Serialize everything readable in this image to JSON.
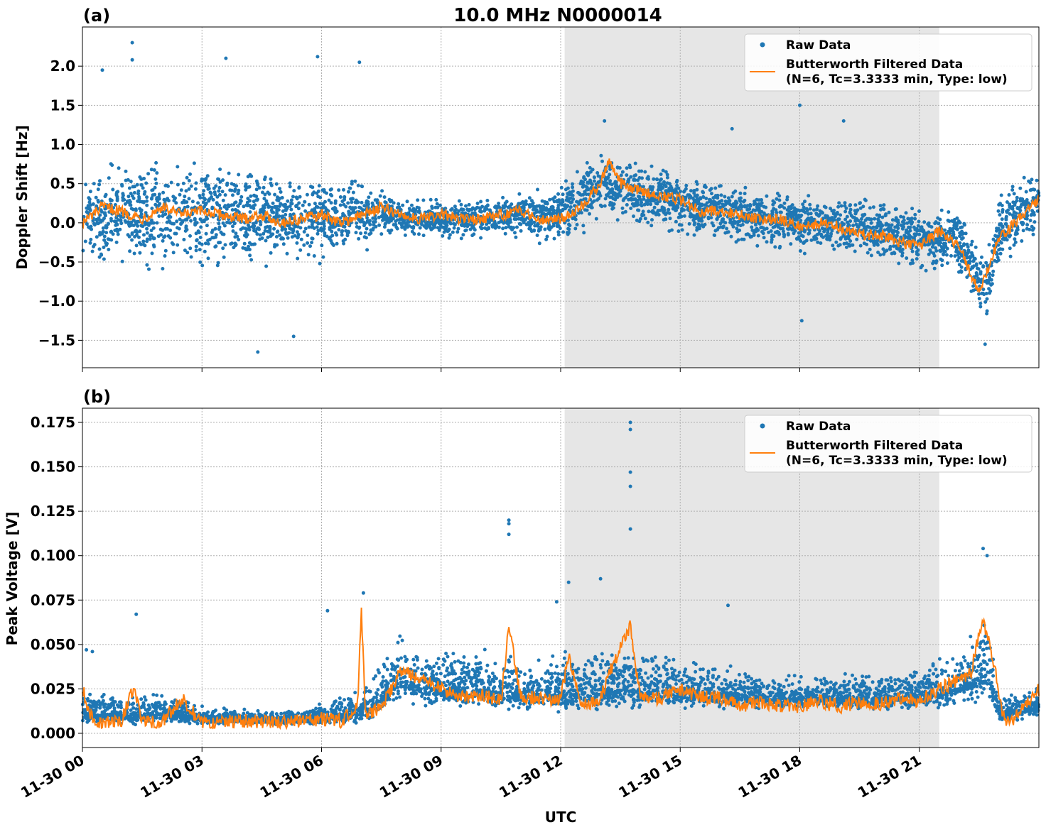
{
  "figure": {
    "xlabel": "UTC",
    "x_ticks": [
      "11-30 00",
      "11-30 03",
      "11-30 06",
      "11-30 09",
      "11-30 12",
      "11-30 15",
      "11-30 18",
      "11-30 21"
    ],
    "colors": {
      "raw": "#1f77b4",
      "filtered": "#ff7f0e",
      "shade": "#e6e6e6",
      "grid": "#b0b0b0"
    }
  },
  "chart_data": [
    {
      "type": "scatter",
      "panel_label": "(a)",
      "title": "10.0 MHz N0000014",
      "ylabel": "Doppler Shift [Hz]",
      "xlim": [
        "2023-11-30 00:00",
        "2023-12-01 00:00"
      ],
      "ylim": [
        -1.85,
        2.5
      ],
      "y_ticks": [
        "2.0",
        "1.5",
        "1.0",
        "0.5",
        "0.0",
        "−0.5",
        "−1.0",
        "−1.5"
      ],
      "y_tick_values": [
        2.0,
        1.5,
        1.0,
        0.5,
        0.0,
        -0.5,
        -1.0,
        -1.5
      ],
      "shaded_region": [
        "2023-11-30 12:06",
        "2023-11-30 21:30"
      ],
      "grid": true,
      "legend": {
        "location": "upper right",
        "raw": "Raw Data",
        "filtered_line1": "Butterworth Filtered Data",
        "filtered_line2": "(N=6, Tc=3.3333 min, Type: low)"
      },
      "filtered_series": {
        "name": "Butterworth Filtered Data (N=6, Tc=3.3333 min, Type: low)",
        "x_hours": [
          0,
          0.5,
          1,
          1.5,
          2,
          2.5,
          3,
          3.5,
          4,
          4.5,
          5,
          5.5,
          6,
          6.5,
          7,
          7.5,
          8,
          8.5,
          9,
          9.5,
          10,
          10.5,
          11,
          11.5,
          12,
          12.5,
          13,
          13.2,
          13.5,
          14,
          14.5,
          15,
          15.5,
          16,
          16.5,
          17,
          17.5,
          18,
          18.5,
          19,
          19.5,
          20,
          20.5,
          21,
          21.5,
          22,
          22.5,
          23,
          23.5,
          24
        ],
        "y": [
          0.0,
          0.2,
          0.15,
          0.05,
          0.2,
          0.1,
          0.15,
          0.1,
          0.05,
          0.1,
          0.0,
          0.05,
          0.1,
          0.0,
          0.1,
          0.2,
          0.1,
          0.05,
          0.1,
          0.05,
          0.05,
          0.1,
          0.15,
          0.05,
          0.05,
          0.2,
          0.5,
          0.8,
          0.5,
          0.4,
          0.35,
          0.3,
          0.15,
          0.15,
          0.1,
          0.05,
          0.05,
          -0.05,
          0.0,
          -0.05,
          -0.15,
          -0.15,
          -0.25,
          -0.3,
          -0.1,
          -0.3,
          -0.9,
          -0.2,
          0.05,
          0.3
        ]
      },
      "raw_series": {
        "name": "Raw Data",
        "x_hours": [
          0,
          1,
          2,
          3,
          4,
          5,
          6,
          7,
          7.5,
          8,
          9,
          10,
          11,
          12,
          13,
          14,
          15,
          16,
          17,
          18,
          19,
          20,
          21,
          22,
          22.7,
          23,
          24
        ],
        "center": [
          0.1,
          0.1,
          0.1,
          0.15,
          0.1,
          0.05,
          0.05,
          0.1,
          0.15,
          0.05,
          0.05,
          0.05,
          0.1,
          0.1,
          0.5,
          0.35,
          0.25,
          0.15,
          0.05,
          0.0,
          -0.05,
          -0.1,
          -0.2,
          -0.25,
          -0.9,
          -0.1,
          0.3
        ],
        "spread": [
          0.75,
          0.8,
          0.8,
          0.85,
          0.75,
          0.65,
          0.65,
          0.55,
          0.35,
          0.3,
          0.3,
          0.3,
          0.35,
          0.45,
          0.5,
          0.45,
          0.45,
          0.45,
          0.45,
          0.45,
          0.45,
          0.45,
          0.5,
          0.5,
          0.6,
          0.5,
          0.5
        ],
        "outliers": [
          [
            1.25,
            2.3
          ],
          [
            1.25,
            2.08
          ],
          [
            3.6,
            2.1
          ],
          [
            5.9,
            2.12
          ],
          [
            6.95,
            2.05
          ],
          [
            0.5,
            1.95
          ],
          [
            4.4,
            -1.65
          ],
          [
            5.3,
            -1.45
          ],
          [
            18.0,
            1.5
          ],
          [
            19.1,
            1.3
          ],
          [
            18.05,
            -1.25
          ],
          [
            22.65,
            -1.55
          ],
          [
            13.1,
            1.3
          ],
          [
            16.3,
            1.2
          ]
        ]
      }
    },
    {
      "type": "scatter",
      "panel_label": "(b)",
      "title": "",
      "ylabel": "Peak Voltage [V]",
      "xlim": [
        "2023-11-30 00:00",
        "2023-12-01 00:00"
      ],
      "ylim": [
        -0.008,
        0.183
      ],
      "y_ticks": [
        "0.175",
        "0.150",
        "0.125",
        "0.100",
        "0.075",
        "0.050",
        "0.025",
        "0.000"
      ],
      "y_tick_values": [
        0.175,
        0.15,
        0.125,
        0.1,
        0.075,
        0.05,
        0.025,
        0.0
      ],
      "shaded_region": [
        "2023-11-30 12:06",
        "2023-11-30 21:30"
      ],
      "grid": true,
      "legend": {
        "location": "upper right",
        "raw": "Raw Data",
        "filtered_line1": "Butterworth Filtered Data",
        "filtered_line2": "(N=6, Tc=3.3333 min, Type: low)"
      },
      "filtered_series": {
        "name": "Butterworth Filtered Data (N=6, Tc=3.3333 min, Type: low)",
        "x_hours": [
          0,
          0.2,
          0.5,
          1,
          1.3,
          1.5,
          2,
          2.5,
          3,
          4,
          5,
          6,
          6.5,
          6.9,
          7.0,
          7.1,
          7.5,
          8,
          8.5,
          9,
          9.5,
          10,
          10.5,
          10.7,
          11,
          11.5,
          12,
          12.2,
          12.5,
          13,
          13.3,
          13.75,
          14,
          14.5,
          15,
          15.5,
          16,
          16.5,
          17,
          17.5,
          18,
          18.5,
          19,
          19.5,
          20,
          20.5,
          21,
          21.5,
          22,
          22.3,
          22.6,
          22.9,
          23.1,
          23.3,
          23.6,
          24
        ],
        "y": [
          0.025,
          0.01,
          0.005,
          0.008,
          0.027,
          0.006,
          0.006,
          0.02,
          0.005,
          0.007,
          0.006,
          0.008,
          0.007,
          0.015,
          0.07,
          0.01,
          0.015,
          0.035,
          0.03,
          0.025,
          0.02,
          0.022,
          0.018,
          0.06,
          0.02,
          0.02,
          0.018,
          0.045,
          0.015,
          0.02,
          0.038,
          0.06,
          0.02,
          0.02,
          0.025,
          0.02,
          0.02,
          0.015,
          0.018,
          0.015,
          0.015,
          0.018,
          0.015,
          0.018,
          0.016,
          0.02,
          0.018,
          0.025,
          0.03,
          0.035,
          0.065,
          0.035,
          0.01,
          0.005,
          0.015,
          0.025
        ]
      },
      "raw_series": {
        "name": "Raw Data",
        "x_hours": [
          0,
          1,
          2,
          3,
          4,
          5,
          6,
          7,
          7.5,
          8,
          9,
          10,
          11,
          12,
          13,
          14,
          15,
          16,
          17,
          18,
          19,
          20,
          21,
          22,
          22.7,
          23,
          24
        ],
        "center": [
          0.012,
          0.01,
          0.012,
          0.008,
          0.008,
          0.007,
          0.009,
          0.012,
          0.02,
          0.03,
          0.025,
          0.025,
          0.022,
          0.022,
          0.025,
          0.025,
          0.024,
          0.022,
          0.02,
          0.02,
          0.02,
          0.02,
          0.022,
          0.025,
          0.035,
          0.01,
          0.015
        ],
        "spread": [
          0.012,
          0.01,
          0.012,
          0.006,
          0.005,
          0.005,
          0.007,
          0.012,
          0.02,
          0.022,
          0.02,
          0.02,
          0.018,
          0.02,
          0.022,
          0.02,
          0.018,
          0.015,
          0.013,
          0.012,
          0.012,
          0.013,
          0.015,
          0.018,
          0.03,
          0.008,
          0.012
        ],
        "outliers": [
          [
            13.75,
            0.175
          ],
          [
            13.75,
            0.171
          ],
          [
            13.75,
            0.147
          ],
          [
            13.75,
            0.139
          ],
          [
            13.75,
            0.115
          ],
          [
            10.7,
            0.12
          ],
          [
            10.7,
            0.118
          ],
          [
            10.7,
            0.112
          ],
          [
            22.6,
            0.104
          ],
          [
            22.7,
            0.1
          ],
          [
            7.05,
            0.079
          ],
          [
            1.35,
            0.067
          ],
          [
            12.2,
            0.085
          ],
          [
            13.0,
            0.087
          ],
          [
            16.2,
            0.072
          ],
          [
            6.15,
            0.069
          ],
          [
            0.1,
            0.047
          ],
          [
            0.25,
            0.046
          ],
          [
            11.9,
            0.074
          ]
        ]
      }
    }
  ]
}
